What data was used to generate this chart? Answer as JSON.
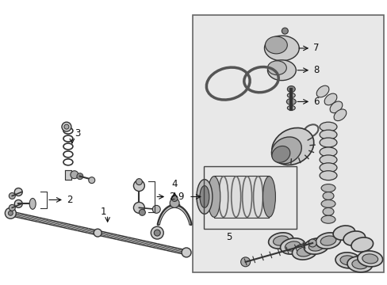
{
  "bg_color": "#ffffff",
  "box_color": "#e8e8e8",
  "box_border": "#666666",
  "line_color": "#333333",
  "label_fontsize": 8.5,
  "arrow_color": "#111111"
}
